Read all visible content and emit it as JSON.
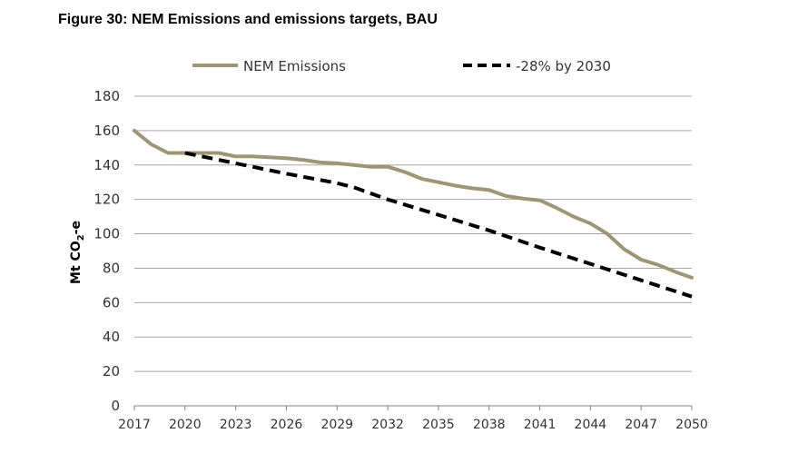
{
  "figure_title": "Figure 30:  NEM Emissions and emissions targets, BAU",
  "chart_data": {
    "type": "line",
    "title": "Figure 30:  NEM Emissions and emissions targets, BAU",
    "xlabel": "",
    "ylabel": "Mt CO2-e",
    "ylabel_parts": {
      "main": "Mt CO",
      "sub": "2",
      "tail": "-e"
    },
    "xlim": [
      2017,
      2050
    ],
    "ylim": [
      0,
      180
    ],
    "x_ticks": [
      2017,
      2020,
      2023,
      2026,
      2029,
      2032,
      2035,
      2038,
      2041,
      2044,
      2047,
      2050
    ],
    "y_ticks": [
      0,
      20,
      40,
      60,
      80,
      100,
      120,
      140,
      160,
      180
    ],
    "grid": "horizontal",
    "legend_position": "top",
    "x": [
      2017,
      2018,
      2019,
      2020,
      2021,
      2022,
      2023,
      2024,
      2025,
      2026,
      2027,
      2028,
      2029,
      2030,
      2031,
      2032,
      2033,
      2034,
      2035,
      2036,
      2037,
      2038,
      2039,
      2040,
      2041,
      2042,
      2043,
      2044,
      2045,
      2046,
      2047,
      2048,
      2049,
      2050
    ],
    "series": [
      {
        "name": "NEM Emissions",
        "color": "#9e9672",
        "style": "solid",
        "values": [
          160,
          152,
          147,
          147,
          147,
          147,
          145,
          145,
          144.5,
          144,
          143,
          141.5,
          141,
          140,
          139,
          139,
          136,
          132,
          130,
          128,
          126.5,
          125.5,
          122,
          120.5,
          119.5,
          115,
          110,
          106,
          100,
          91,
          85,
          82,
          78,
          74.5
        ]
      },
      {
        "name": "-28% by 2030",
        "color": "#000000",
        "style": "dashed",
        "x": [
          2020,
          2023,
          2026,
          2029,
          2030,
          2032,
          2035,
          2038,
          2041,
          2044,
          2047,
          2050
        ],
        "values": [
          147,
          141,
          135,
          129.5,
          127,
          120,
          111,
          102,
          92,
          82.5,
          73,
          63.5
        ]
      }
    ]
  }
}
